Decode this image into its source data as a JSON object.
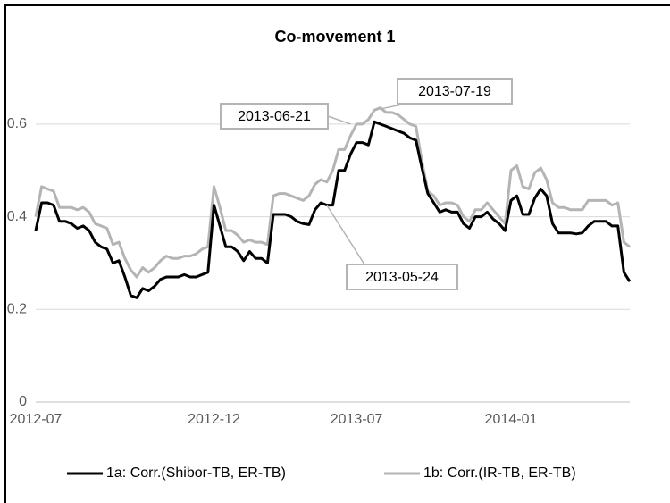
{
  "chart_data": {
    "type": "line",
    "title": "Co-movement 1",
    "categories": [
      "2012-07",
      null,
      null,
      null,
      null,
      null,
      null,
      null,
      null,
      null,
      null,
      null,
      null,
      null,
      null,
      null,
      null,
      null,
      null,
      null,
      null,
      null,
      null,
      null,
      null,
      null,
      null,
      null,
      null,
      null,
      "2012-12",
      null,
      null,
      null,
      null,
      null,
      null,
      null,
      null,
      null,
      null,
      null,
      null,
      null,
      null,
      null,
      null,
      null,
      null,
      null,
      null,
      null,
      null,
      null,
      "2013-07",
      null,
      null,
      null,
      null,
      null,
      null,
      null,
      null,
      null,
      null,
      null,
      null,
      null,
      null,
      null,
      null,
      null,
      null,
      null,
      null,
      null,
      null,
      null,
      null,
      null,
      "2014-01",
      null,
      null,
      null,
      null,
      null,
      null,
      null,
      null,
      null,
      null,
      null,
      null,
      null,
      null,
      null,
      null,
      null,
      null,
      null,
      null
    ],
    "series": [
      {
        "name": "1a: Corr.(Shibor-TB, ER-TB)",
        "color": "#000000",
        "values": [
          0.37,
          0.43,
          0.43,
          0.425,
          0.39,
          0.39,
          0.385,
          0.375,
          0.38,
          0.37,
          0.345,
          0.335,
          0.33,
          0.3,
          0.305,
          0.27,
          0.23,
          0.225,
          0.245,
          0.24,
          0.25,
          0.265,
          0.27,
          0.27,
          0.27,
          0.275,
          0.27,
          0.27,
          0.275,
          0.28,
          0.425,
          0.38,
          0.335,
          0.335,
          0.325,
          0.305,
          0.325,
          0.31,
          0.31,
          0.3,
          0.405,
          0.405,
          0.405,
          0.4,
          0.39,
          0.385,
          0.383,
          0.415,
          0.43,
          0.425,
          0.425,
          0.5,
          0.5,
          0.535,
          0.56,
          0.56,
          0.555,
          0.605,
          0.6,
          0.595,
          0.59,
          0.585,
          0.58,
          0.57,
          0.565,
          0.505,
          0.45,
          0.43,
          0.41,
          0.415,
          0.41,
          0.41,
          0.385,
          0.375,
          0.4,
          0.4,
          0.41,
          0.395,
          0.385,
          0.37,
          0.435,
          0.445,
          0.405,
          0.405,
          0.44,
          0.46,
          0.445,
          0.385,
          0.365,
          0.365,
          0.365,
          0.363,
          0.365,
          0.38,
          0.39,
          0.39,
          0.39,
          0.38,
          0.38,
          0.28,
          0.26
        ]
      },
      {
        "name": "1b: Corr.(IR-TB, ER-TB)",
        "color": "#b4b4b4",
        "values": [
          0.4,
          0.465,
          0.46,
          0.455,
          0.42,
          0.42,
          0.42,
          0.415,
          0.42,
          0.41,
          0.385,
          0.38,
          0.375,
          0.34,
          0.345,
          0.31,
          0.285,
          0.27,
          0.29,
          0.28,
          0.29,
          0.305,
          0.315,
          0.31,
          0.31,
          0.315,
          0.315,
          0.32,
          0.33,
          0.335,
          0.465,
          0.42,
          0.37,
          0.37,
          0.36,
          0.345,
          0.35,
          0.345,
          0.345,
          0.34,
          0.445,
          0.45,
          0.45,
          0.445,
          0.44,
          0.435,
          0.445,
          0.47,
          0.48,
          0.475,
          0.5,
          0.545,
          0.545,
          0.575,
          0.6,
          0.6,
          0.61,
          0.63,
          0.635,
          0.625,
          0.625,
          0.62,
          0.61,
          0.6,
          0.595,
          0.52,
          0.455,
          0.445,
          0.425,
          0.43,
          0.43,
          0.425,
          0.4,
          0.39,
          0.415,
          0.415,
          0.43,
          0.415,
          0.4,
          0.385,
          0.5,
          0.51,
          0.465,
          0.46,
          0.495,
          0.505,
          0.48,
          0.43,
          0.42,
          0.42,
          0.415,
          0.415,
          0.415,
          0.435,
          0.435,
          0.435,
          0.435,
          0.425,
          0.43,
          0.345,
          0.335
        ]
      }
    ],
    "ylim": [
      0,
      0.7
    ],
    "yticks": [
      0,
      0.2,
      0.4,
      0.6
    ],
    "grid": true,
    "legend": "bottom",
    "annotations": [
      "2013-05-24",
      "2013-06-21",
      "2013-07-19"
    ]
  }
}
